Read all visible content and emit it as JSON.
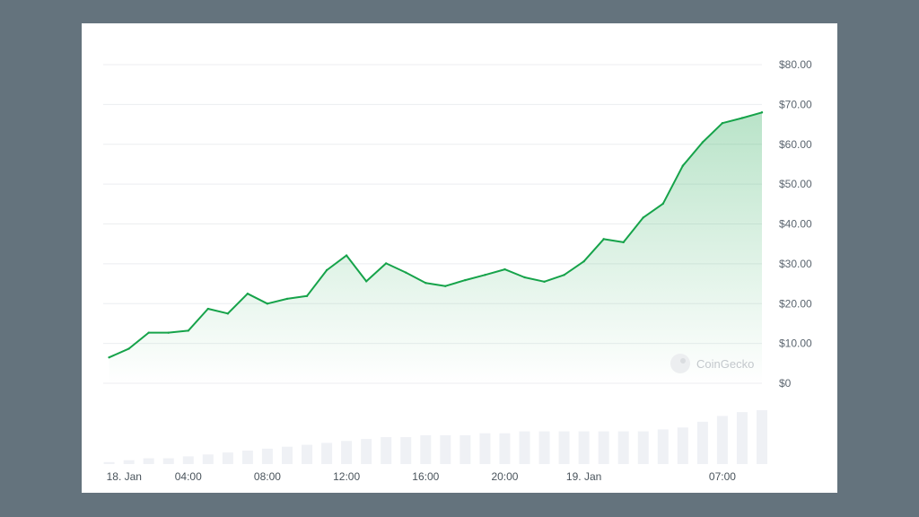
{
  "chart_data": {
    "type": "line",
    "title": "",
    "xlabel": "",
    "ylabel": "",
    "y_ticks": [
      "$0",
      "$10.00",
      "$20.00",
      "$30.00",
      "$40.00",
      "$50.00",
      "$60.00",
      "$70.00",
      "$80.00"
    ],
    "ylim": [
      0,
      80
    ],
    "x_ticks": [
      {
        "label": "18. Jan",
        "hour": 0
      },
      {
        "label": "04:00",
        "hour": 4
      },
      {
        "label": "08:00",
        "hour": 8
      },
      {
        "label": "12:00",
        "hour": 12
      },
      {
        "label": "16:00",
        "hour": 16
      },
      {
        "label": "20:00",
        "hour": 20
      },
      {
        "label": "19. Jan",
        "hour": 24
      },
      {
        "label": "07:00",
        "hour": 31
      }
    ],
    "xlim": [
      -0.3,
      33.0
    ],
    "series": [
      {
        "name": "",
        "color": "#16a34a",
        "x": [
          0.0,
          1.0,
          2.0,
          3.0,
          4.0,
          5.0,
          6.0,
          7.0,
          8.0,
          9.0,
          10.0,
          11.0,
          12.0,
          13.0,
          14.0,
          15.0,
          16.0,
          17.0,
          18.0,
          19.0,
          20.0,
          21.0,
          22.0,
          23.0,
          24.0,
          25.0,
          26.0,
          27.0,
          28.0,
          29.0,
          30.0,
          31.0,
          32.0,
          33.0
        ],
        "values": [
          6.5,
          8.7,
          12.7,
          12.7,
          13.2,
          18.7,
          17.5,
          22.5,
          20.0,
          21.2,
          21.9,
          28.4,
          32.1,
          25.6,
          30.1,
          27.8,
          25.2,
          24.4,
          25.9,
          27.2,
          28.6,
          26.6,
          25.5,
          27.2,
          30.6,
          36.2,
          35.4,
          41.6,
          45.1,
          54.6,
          60.5,
          65.3,
          66.6,
          68.0
        ]
      }
    ],
    "volume": {
      "color": "#eff1f5",
      "values": [
        1,
        2,
        3,
        3,
        4,
        5,
        6,
        7,
        8,
        9,
        10,
        11,
        12,
        13,
        14,
        14,
        15,
        15,
        15,
        16,
        16,
        17,
        17,
        17,
        17,
        17,
        17,
        17,
        18,
        19,
        22,
        25,
        27,
        28
      ]
    },
    "grid": true,
    "legend": "none",
    "fill": "gradient-area"
  },
  "watermark": {
    "text": "CoinGecko"
  }
}
